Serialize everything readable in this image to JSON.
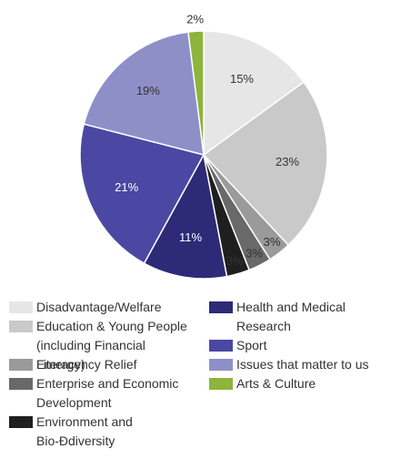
{
  "chart_data": {
    "type": "pie",
    "categories": [
      "Disadvantage/Welfare",
      "Education & Young People (including Financial Literacy)",
      "Emergency Relief",
      "Enterprise and Economic Development",
      "Environment and Bio-Ðdiversity",
      "Health and Medical Research",
      "Sport",
      "Issues that matter to us",
      "Arts & Culture"
    ],
    "values": [
      15,
      23,
      3,
      3,
      3,
      11,
      21,
      19,
      2
    ],
    "value_labels": [
      "15%",
      "23%",
      "3%",
      "3%",
      "3%",
      "11%",
      "21%",
      "19%",
      "2%"
    ],
    "colors": [
      "#e6e6e6",
      "#c9c9c9",
      "#9a9a9a",
      "#696969",
      "#1f1f1f",
      "#2d2a78",
      "#4a48a2",
      "#8f8fc8",
      "#8db43c"
    ],
    "legend": "bottom"
  }
}
